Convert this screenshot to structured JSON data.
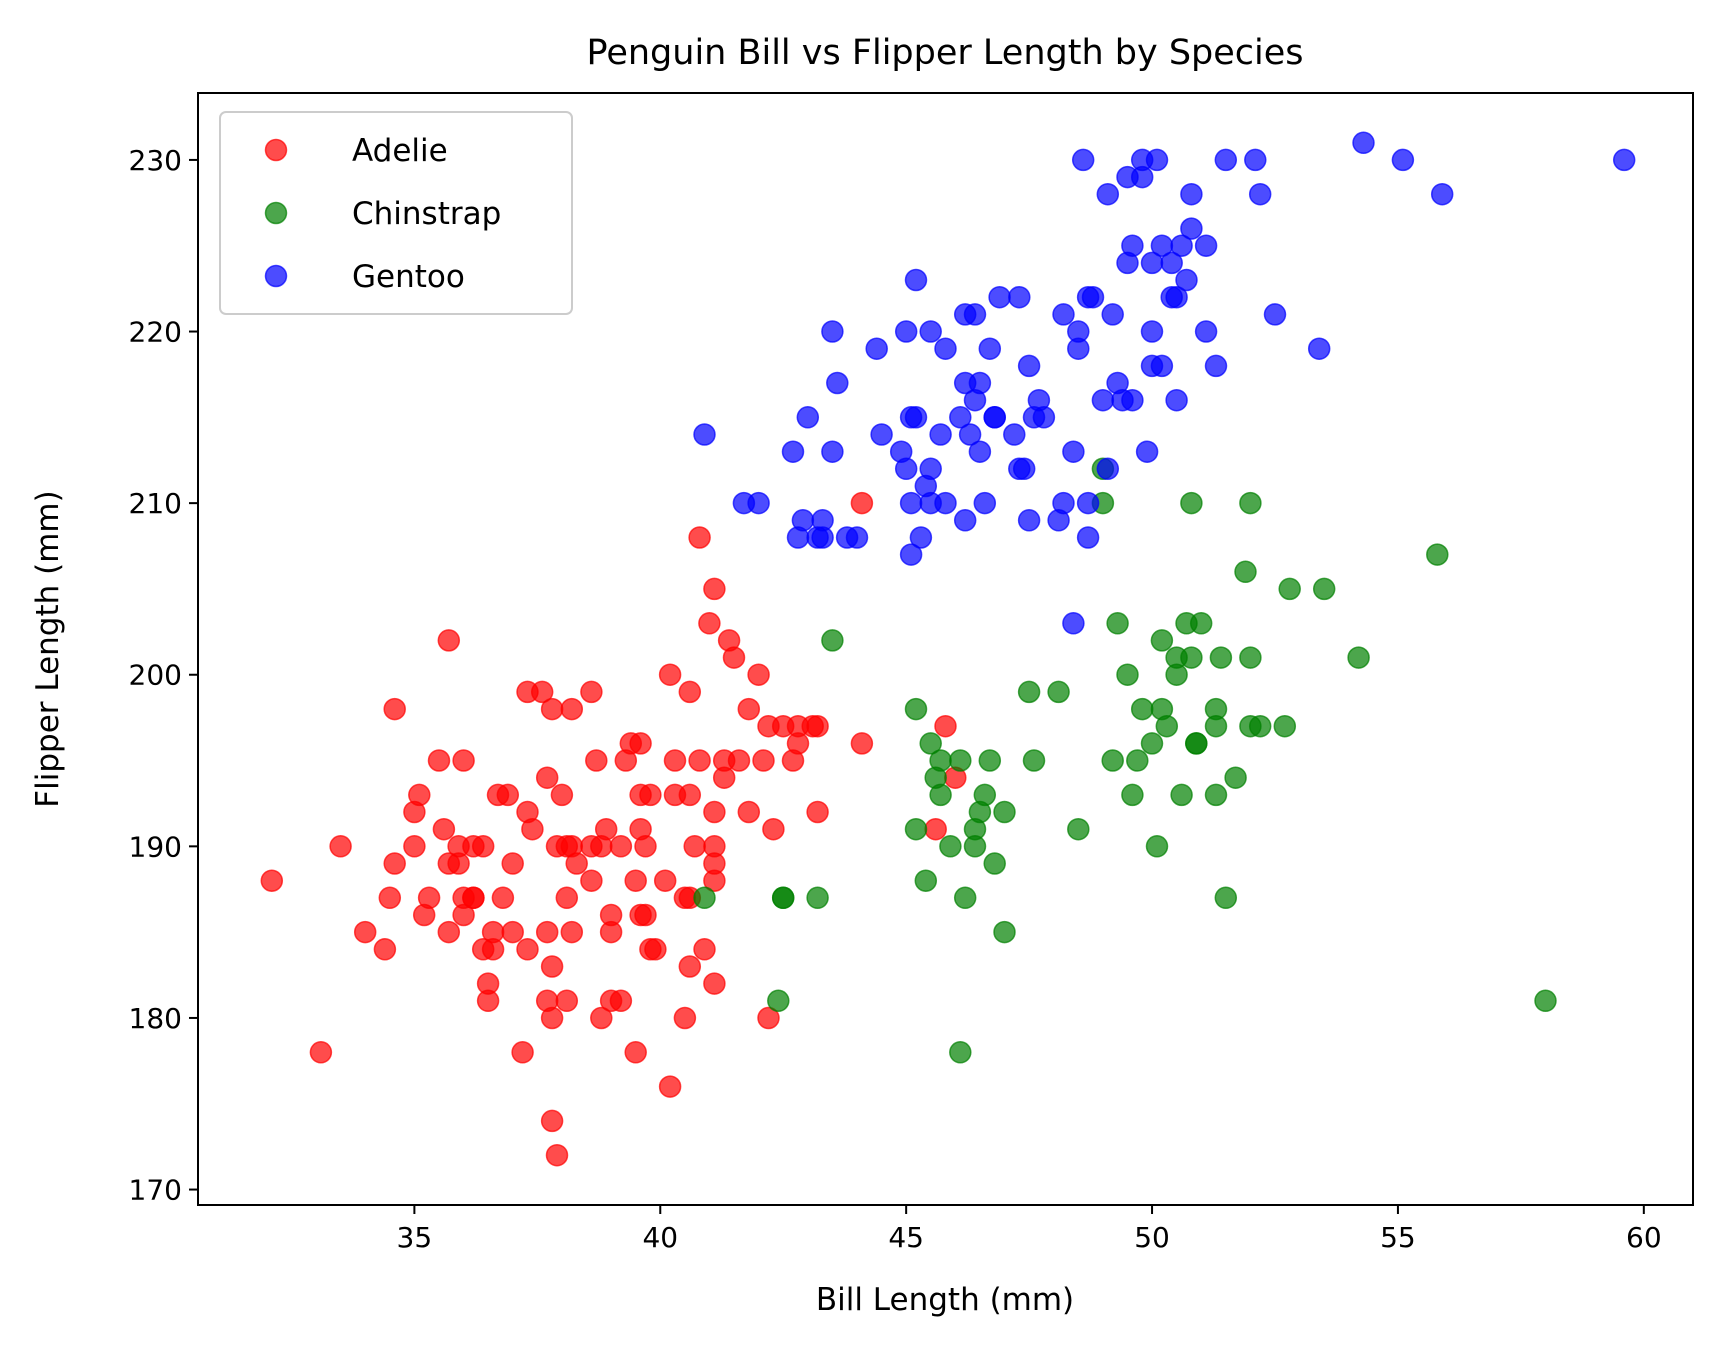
{
  "chart_data": {
    "type": "scatter",
    "title": "Penguin Bill vs Flipper Length by Species",
    "xlabel": "Bill Length (mm)",
    "ylabel": "Flipper Length (mm)",
    "xlim": [
      30.6,
      61.0
    ],
    "ylim": [
      169.1,
      233.9
    ],
    "xticks": [
      35,
      40,
      45,
      50,
      55,
      60
    ],
    "yticks": [
      170,
      180,
      190,
      200,
      210,
      220,
      230
    ],
    "grid": false,
    "legend_position": "upper-left",
    "series": [
      {
        "name": "Adelie",
        "color": "#ff0000",
        "points": [
          [
            32.1,
            188
          ],
          [
            33.1,
            178
          ],
          [
            33.5,
            190
          ],
          [
            34.0,
            185
          ],
          [
            34.4,
            184
          ],
          [
            34.5,
            187
          ],
          [
            34.6,
            189
          ],
          [
            34.6,
            198
          ],
          [
            35.0,
            192
          ],
          [
            35.1,
            193
          ],
          [
            35.0,
            190
          ],
          [
            35.2,
            186
          ],
          [
            35.3,
            187
          ],
          [
            35.5,
            195
          ],
          [
            35.6,
            191
          ],
          [
            35.7,
            185
          ],
          [
            35.7,
            202
          ],
          [
            35.7,
            189
          ],
          [
            35.9,
            190
          ],
          [
            35.9,
            189
          ],
          [
            36.0,
            195
          ],
          [
            36.0,
            186
          ],
          [
            36.0,
            187
          ],
          [
            36.2,
            187
          ],
          [
            36.2,
            187
          ],
          [
            36.2,
            190
          ],
          [
            36.4,
            190
          ],
          [
            36.4,
            184
          ],
          [
            36.5,
            181
          ],
          [
            36.5,
            182
          ],
          [
            36.6,
            185
          ],
          [
            36.6,
            184
          ],
          [
            36.7,
            193
          ],
          [
            36.8,
            187
          ],
          [
            36.9,
            193
          ],
          [
            37.0,
            189
          ],
          [
            37.0,
            185
          ],
          [
            37.2,
            178
          ],
          [
            37.3,
            199
          ],
          [
            37.3,
            184
          ],
          [
            37.3,
            192
          ],
          [
            37.4,
            191
          ],
          [
            37.6,
            199
          ],
          [
            37.7,
            194
          ],
          [
            37.7,
            181
          ],
          [
            37.7,
            185
          ],
          [
            37.8,
            180
          ],
          [
            37.8,
            183
          ],
          [
            37.8,
            174
          ],
          [
            37.8,
            198
          ],
          [
            37.9,
            190
          ],
          [
            37.9,
            172
          ],
          [
            38.0,
            193
          ],
          [
            38.1,
            190
          ],
          [
            38.1,
            181
          ],
          [
            38.1,
            187
          ],
          [
            38.2,
            190
          ],
          [
            38.2,
            198
          ],
          [
            38.2,
            185
          ],
          [
            38.3,
            189
          ],
          [
            38.6,
            188
          ],
          [
            38.6,
            190
          ],
          [
            38.6,
            199
          ],
          [
            38.7,
            195
          ],
          [
            38.8,
            190
          ],
          [
            38.8,
            180
          ],
          [
            38.9,
            191
          ],
          [
            39.0,
            185
          ],
          [
            39.0,
            186
          ],
          [
            39.0,
            181
          ],
          [
            39.2,
            190
          ],
          [
            39.2,
            181
          ],
          [
            39.3,
            195
          ],
          [
            39.4,
            196
          ],
          [
            39.5,
            178
          ],
          [
            39.5,
            188
          ],
          [
            39.6,
            191
          ],
          [
            39.6,
            196
          ],
          [
            39.6,
            186
          ],
          [
            39.6,
            193
          ],
          [
            39.7,
            186
          ],
          [
            39.7,
            190
          ],
          [
            39.8,
            184
          ],
          [
            39.8,
            193
          ],
          [
            39.9,
            184
          ],
          [
            40.1,
            188
          ],
          [
            40.2,
            200
          ],
          [
            40.2,
            176
          ],
          [
            40.3,
            193
          ],
          [
            40.3,
            195
          ],
          [
            40.5,
            187
          ],
          [
            40.5,
            180
          ],
          [
            40.6,
            187
          ],
          [
            40.6,
            183
          ],
          [
            40.6,
            193
          ],
          [
            40.6,
            199
          ],
          [
            40.7,
            190
          ],
          [
            40.8,
            195
          ],
          [
            40.8,
            208
          ],
          [
            40.9,
            184
          ],
          [
            41.0,
            203
          ],
          [
            41.1,
            205
          ],
          [
            41.1,
            182
          ],
          [
            41.1,
            188
          ],
          [
            41.1,
            189
          ],
          [
            41.1,
            190
          ],
          [
            41.1,
            192
          ],
          [
            41.3,
            194
          ],
          [
            41.3,
            195
          ],
          [
            41.4,
            202
          ],
          [
            41.5,
            201
          ],
          [
            41.6,
            195
          ],
          [
            41.8,
            192
          ],
          [
            41.8,
            198
          ],
          [
            42.0,
            200
          ],
          [
            42.1,
            195
          ],
          [
            42.2,
            197
          ],
          [
            42.2,
            180
          ],
          [
            42.3,
            191
          ],
          [
            42.5,
            197
          ],
          [
            42.7,
            195
          ],
          [
            42.8,
            196
          ],
          [
            42.8,
            197
          ],
          [
            43.1,
            197
          ],
          [
            43.2,
            192
          ],
          [
            43.2,
            197
          ],
          [
            44.1,
            196
          ],
          [
            44.1,
            210
          ],
          [
            45.6,
            191
          ],
          [
            45.8,
            197
          ],
          [
            46.0,
            194
          ]
        ]
      },
      {
        "name": "Chinstrap",
        "color": "#008000",
        "points": [
          [
            40.9,
            187
          ],
          [
            42.4,
            181
          ],
          [
            42.5,
            187
          ],
          [
            42.5,
            187
          ],
          [
            43.2,
            187
          ],
          [
            43.5,
            202
          ],
          [
            45.2,
            198
          ],
          [
            45.2,
            191
          ],
          [
            45.4,
            188
          ],
          [
            45.5,
            196
          ],
          [
            45.6,
            194
          ],
          [
            45.7,
            193
          ],
          [
            45.7,
            195
          ],
          [
            45.9,
            190
          ],
          [
            46.1,
            178
          ],
          [
            46.1,
            195
          ],
          [
            46.2,
            187
          ],
          [
            46.4,
            191
          ],
          [
            46.4,
            190
          ],
          [
            46.5,
            192
          ],
          [
            46.6,
            193
          ],
          [
            46.7,
            195
          ],
          [
            46.8,
            189
          ],
          [
            47.0,
            192
          ],
          [
            47.0,
            185
          ],
          [
            47.5,
            199
          ],
          [
            47.6,
            195
          ],
          [
            48.1,
            199
          ],
          [
            48.5,
            191
          ],
          [
            49.0,
            212
          ],
          [
            49.0,
            210
          ],
          [
            49.2,
            195
          ],
          [
            49.3,
            203
          ],
          [
            49.5,
            200
          ],
          [
            49.6,
            193
          ],
          [
            49.7,
            195
          ],
          [
            49.8,
            198
          ],
          [
            50.0,
            196
          ],
          [
            50.1,
            190
          ],
          [
            50.2,
            198
          ],
          [
            50.2,
            202
          ],
          [
            50.3,
            197
          ],
          [
            50.5,
            200
          ],
          [
            50.5,
            201
          ],
          [
            50.6,
            193
          ],
          [
            50.7,
            203
          ],
          [
            50.8,
            210
          ],
          [
            50.8,
            201
          ],
          [
            50.9,
            196
          ],
          [
            50.9,
            196
          ],
          [
            51.0,
            203
          ],
          [
            51.3,
            198
          ],
          [
            51.3,
            193
          ],
          [
            51.3,
            197
          ],
          [
            51.4,
            201
          ],
          [
            51.5,
            187
          ],
          [
            51.7,
            194
          ],
          [
            51.9,
            206
          ],
          [
            52.0,
            210
          ],
          [
            52.0,
            201
          ],
          [
            52.0,
            197
          ],
          [
            52.2,
            197
          ],
          [
            52.7,
            197
          ],
          [
            52.8,
            205
          ],
          [
            53.5,
            205
          ],
          [
            54.2,
            201
          ],
          [
            55.8,
            207
          ],
          [
            58.0,
            181
          ]
        ]
      },
      {
        "name": "Gentoo",
        "color": "#0000ff",
        "points": [
          [
            40.9,
            214
          ],
          [
            41.7,
            210
          ],
          [
            42.0,
            210
          ],
          [
            42.7,
            213
          ],
          [
            42.8,
            208
          ],
          [
            42.9,
            209
          ],
          [
            43.0,
            215
          ],
          [
            43.2,
            208
          ],
          [
            43.3,
            209
          ],
          [
            43.3,
            208
          ],
          [
            43.5,
            220
          ],
          [
            43.5,
            213
          ],
          [
            43.6,
            217
          ],
          [
            43.8,
            208
          ],
          [
            44.0,
            208
          ],
          [
            44.4,
            219
          ],
          [
            44.5,
            214
          ],
          [
            44.9,
            213
          ],
          [
            45.0,
            212
          ],
          [
            45.0,
            220
          ],
          [
            45.1,
            215
          ],
          [
            45.1,
            210
          ],
          [
            45.1,
            207
          ],
          [
            45.2,
            223
          ],
          [
            45.2,
            215
          ],
          [
            45.3,
            208
          ],
          [
            45.4,
            211
          ],
          [
            45.5,
            210
          ],
          [
            45.5,
            212
          ],
          [
            45.5,
            220
          ],
          [
            45.7,
            214
          ],
          [
            45.8,
            210
          ],
          [
            45.8,
            219
          ],
          [
            46.1,
            215
          ],
          [
            46.2,
            209
          ],
          [
            46.2,
            221
          ],
          [
            46.2,
            217
          ],
          [
            46.3,
            214
          ],
          [
            46.4,
            216
          ],
          [
            46.4,
            221
          ],
          [
            46.5,
            217
          ],
          [
            46.5,
            213
          ],
          [
            46.6,
            210
          ],
          [
            46.7,
            219
          ],
          [
            46.8,
            215
          ],
          [
            46.8,
            215
          ],
          [
            46.9,
            222
          ],
          [
            47.2,
            214
          ],
          [
            47.3,
            222
          ],
          [
            47.3,
            212
          ],
          [
            47.4,
            212
          ],
          [
            47.5,
            209
          ],
          [
            47.5,
            218
          ],
          [
            47.6,
            215
          ],
          [
            47.7,
            216
          ],
          [
            47.8,
            215
          ],
          [
            48.1,
            209
          ],
          [
            48.2,
            221
          ],
          [
            48.2,
            210
          ],
          [
            48.4,
            213
          ],
          [
            48.4,
            203
          ],
          [
            48.5,
            219
          ],
          [
            48.5,
            220
          ],
          [
            48.6,
            230
          ],
          [
            48.7,
            208
          ],
          [
            48.7,
            210
          ],
          [
            48.7,
            222
          ],
          [
            48.8,
            222
          ],
          [
            49.0,
            216
          ],
          [
            49.1,
            212
          ],
          [
            49.1,
            228
          ],
          [
            49.2,
            221
          ],
          [
            49.3,
            217
          ],
          [
            49.4,
            216
          ],
          [
            49.5,
            224
          ],
          [
            49.5,
            229
          ],
          [
            49.6,
            225
          ],
          [
            49.6,
            216
          ],
          [
            49.8,
            229
          ],
          [
            49.8,
            230
          ],
          [
            49.9,
            213
          ],
          [
            50.0,
            220
          ],
          [
            50.0,
            218
          ],
          [
            50.0,
            224
          ],
          [
            50.1,
            230
          ],
          [
            50.2,
            225
          ],
          [
            50.2,
            218
          ],
          [
            50.4,
            222
          ],
          [
            50.4,
            224
          ],
          [
            50.5,
            222
          ],
          [
            50.5,
            216
          ],
          [
            50.6,
            225
          ],
          [
            50.7,
            223
          ],
          [
            50.8,
            226
          ],
          [
            50.8,
            228
          ],
          [
            51.1,
            225
          ],
          [
            51.1,
            220
          ],
          [
            51.3,
            218
          ],
          [
            51.5,
            230
          ],
          [
            52.1,
            230
          ],
          [
            52.2,
            228
          ],
          [
            52.5,
            221
          ],
          [
            53.4,
            219
          ],
          [
            54.3,
            231
          ],
          [
            55.1,
            230
          ],
          [
            55.9,
            228
          ],
          [
            59.6,
            230
          ]
        ]
      }
    ]
  }
}
